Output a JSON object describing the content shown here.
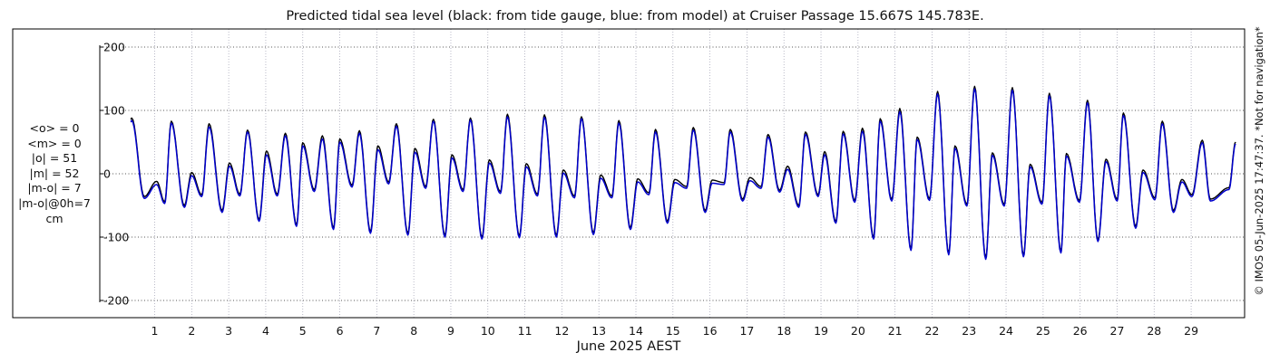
{
  "chart_data": {
    "type": "line",
    "title": "Predicted tidal sea level (black: from tide gauge, blue: from model) at Cruiser Passage 15.667S 145.783E.",
    "xlabel": "June 2025 AEST",
    "ylabel": "",
    "x_range": [
      0.35,
      30.2
    ],
    "ylim": [
      -225,
      225
    ],
    "y_ticks": [
      200,
      100,
      0,
      -100,
      -200
    ],
    "y_tick_labels": [
      "200",
      "100",
      "0",
      "-100",
      "-200"
    ],
    "x_ticks": [
      1,
      2,
      3,
      4,
      5,
      6,
      7,
      8,
      9,
      10,
      11,
      12,
      13,
      14,
      15,
      16,
      17,
      18,
      19,
      20,
      21,
      22,
      23,
      24,
      25,
      26,
      27,
      28,
      29
    ],
    "x_tick_labels": [
      "1",
      "2",
      "3",
      "4",
      "5",
      "6",
      "7",
      "8",
      "9",
      "10",
      "11",
      "12",
      "13",
      "14",
      "15",
      "16",
      "17",
      "18",
      "19",
      "20",
      "21",
      "22",
      "23",
      "24",
      "25",
      "26",
      "27",
      "28",
      "29"
    ],
    "grid": true,
    "series": [
      {
        "color": "#000000",
        "note": "tide gauge",
        "highs": [
          [
            0.38,
            88
          ],
          [
            1.05,
            -12
          ],
          [
            1.45,
            83
          ],
          [
            2.0,
            2
          ],
          [
            2.47,
            79
          ],
          [
            3.02,
            17
          ],
          [
            3.51,
            69
          ],
          [
            4.02,
            36
          ],
          [
            4.53,
            64
          ],
          [
            5.0,
            49
          ],
          [
            5.53,
            60
          ],
          [
            6.0,
            55
          ],
          [
            6.53,
            68
          ],
          [
            7.03,
            44
          ],
          [
            7.53,
            79
          ],
          [
            8.03,
            40
          ],
          [
            8.53,
            86
          ],
          [
            9.03,
            30
          ],
          [
            9.53,
            88
          ],
          [
            10.04,
            22
          ],
          [
            10.53,
            94
          ],
          [
            11.04,
            16
          ],
          [
            11.53,
            93
          ],
          [
            12.04,
            6
          ],
          [
            12.53,
            90
          ],
          [
            13.05,
            -2
          ],
          [
            13.54,
            84
          ],
          [
            14.05,
            -8
          ],
          [
            14.53,
            70
          ],
          [
            15.05,
            -9
          ],
          [
            15.55,
            73
          ],
          [
            16.06,
            -10
          ],
          [
            16.55,
            70
          ],
          [
            17.08,
            -6
          ],
          [
            17.57,
            62
          ],
          [
            18.1,
            12
          ],
          [
            18.58,
            66
          ],
          [
            19.1,
            35
          ],
          [
            19.6,
            67
          ],
          [
            20.12,
            72
          ],
          [
            20.6,
            87
          ],
          [
            21.13,
            103
          ],
          [
            21.6,
            58
          ],
          [
            22.15,
            130
          ],
          [
            22.62,
            44
          ],
          [
            23.15,
            138
          ],
          [
            23.63,
            33
          ],
          [
            24.17,
            136
          ],
          [
            24.65,
            15
          ],
          [
            25.17,
            127
          ],
          [
            25.63,
            32
          ],
          [
            26.2,
            116
          ],
          [
            26.7,
            23
          ],
          [
            27.17,
            96
          ],
          [
            27.7,
            6
          ],
          [
            28.22,
            83
          ],
          [
            28.75,
            -9
          ],
          [
            29.3,
            53
          ]
        ],
        "lows": [
          [
            0.72,
            -36
          ],
          [
            1.27,
            -44
          ],
          [
            1.8,
            -50
          ],
          [
            2.27,
            -33
          ],
          [
            2.82,
            -58
          ],
          [
            3.3,
            -32
          ],
          [
            3.82,
            -72
          ],
          [
            4.31,
            -32
          ],
          [
            4.83,
            -80
          ],
          [
            5.31,
            -25
          ],
          [
            5.83,
            -85
          ],
          [
            6.33,
            -18
          ],
          [
            6.83,
            -91
          ],
          [
            7.32,
            -13
          ],
          [
            7.84,
            -94
          ],
          [
            8.32,
            -20
          ],
          [
            8.84,
            -97
          ],
          [
            9.33,
            -25
          ],
          [
            9.84,
            -100
          ],
          [
            10.34,
            -28
          ],
          [
            10.85,
            -98
          ],
          [
            11.34,
            -32
          ],
          [
            11.85,
            -97
          ],
          [
            12.34,
            -35
          ],
          [
            12.85,
            -93
          ],
          [
            13.35,
            -35
          ],
          [
            13.85,
            -85
          ],
          [
            14.35,
            -30
          ],
          [
            14.85,
            -75
          ],
          [
            15.37,
            -20
          ],
          [
            15.87,
            -58
          ],
          [
            16.38,
            -14
          ],
          [
            16.88,
            -40
          ],
          [
            17.38,
            -20
          ],
          [
            17.88,
            -26
          ],
          [
            18.4,
            -50
          ],
          [
            18.92,
            -33
          ],
          [
            19.4,
            -75
          ],
          [
            19.91,
            -42
          ],
          [
            20.42,
            -100
          ],
          [
            20.91,
            -40
          ],
          [
            21.43,
            -118
          ],
          [
            21.93,
            -39
          ],
          [
            22.45,
            -125
          ],
          [
            22.94,
            -48
          ],
          [
            23.45,
            -132
          ],
          [
            23.95,
            -48
          ],
          [
            24.47,
            -128
          ],
          [
            24.97,
            -45
          ],
          [
            25.48,
            -122
          ],
          [
            25.98,
            -42
          ],
          [
            26.48,
            -104
          ],
          [
            27.0,
            -40
          ],
          [
            27.5,
            -83
          ],
          [
            28.02,
            -38
          ],
          [
            28.52,
            -58
          ],
          [
            29.02,
            -33
          ],
          [
            29.52,
            -40
          ],
          [
            30.02,
            -22
          ]
        ]
      },
      {
        "color": "#0000cc",
        "note": "model",
        "highs": [
          [
            0.38,
            84
          ],
          [
            1.05,
            -17
          ],
          [
            1.45,
            80
          ],
          [
            2.0,
            -3
          ],
          [
            2.47,
            74
          ],
          [
            3.02,
            12
          ],
          [
            3.51,
            66
          ],
          [
            4.02,
            30
          ],
          [
            4.53,
            60
          ],
          [
            5.0,
            44
          ],
          [
            5.53,
            55
          ],
          [
            6.0,
            50
          ],
          [
            6.53,
            64
          ],
          [
            7.03,
            38
          ],
          [
            7.53,
            75
          ],
          [
            8.03,
            34
          ],
          [
            8.53,
            83
          ],
          [
            9.03,
            25
          ],
          [
            9.53,
            85
          ],
          [
            10.04,
            17
          ],
          [
            10.53,
            90
          ],
          [
            11.04,
            11
          ],
          [
            11.53,
            89
          ],
          [
            12.04,
            1
          ],
          [
            12.53,
            87
          ],
          [
            13.05,
            -7
          ],
          [
            13.54,
            80
          ],
          [
            14.05,
            -13
          ],
          [
            14.53,
            66
          ],
          [
            15.05,
            -14
          ],
          [
            15.55,
            69
          ],
          [
            16.06,
            -15
          ],
          [
            16.55,
            66
          ],
          [
            17.08,
            -11
          ],
          [
            17.57,
            58
          ],
          [
            18.1,
            7
          ],
          [
            18.58,
            62
          ],
          [
            19.1,
            30
          ],
          [
            19.6,
            63
          ],
          [
            20.12,
            67
          ],
          [
            20.6,
            83
          ],
          [
            21.13,
            98
          ],
          [
            21.6,
            54
          ],
          [
            22.15,
            126
          ],
          [
            22.62,
            40
          ],
          [
            23.15,
            134
          ],
          [
            23.63,
            29
          ],
          [
            24.17,
            132
          ],
          [
            24.65,
            11
          ],
          [
            25.17,
            123
          ],
          [
            25.63,
            28
          ],
          [
            26.2,
            112
          ],
          [
            26.7,
            19
          ],
          [
            27.17,
            92
          ],
          [
            27.7,
            2
          ],
          [
            28.22,
            79
          ],
          [
            28.75,
            -13
          ],
          [
            29.3,
            49
          ]
        ],
        "lows": [
          [
            0.72,
            -39
          ],
          [
            1.27,
            -47
          ],
          [
            1.8,
            -53
          ],
          [
            2.27,
            -36
          ],
          [
            2.82,
            -61
          ],
          [
            3.3,
            -35
          ],
          [
            3.82,
            -75
          ],
          [
            4.31,
            -35
          ],
          [
            4.83,
            -83
          ],
          [
            5.31,
            -28
          ],
          [
            5.83,
            -88
          ],
          [
            6.33,
            -21
          ],
          [
            6.83,
            -94
          ],
          [
            7.32,
            -16
          ],
          [
            7.84,
            -97
          ],
          [
            8.32,
            -23
          ],
          [
            8.84,
            -100
          ],
          [
            9.33,
            -28
          ],
          [
            9.84,
            -103
          ],
          [
            10.34,
            -31
          ],
          [
            10.85,
            -101
          ],
          [
            11.34,
            -35
          ],
          [
            11.85,
            -100
          ],
          [
            12.34,
            -38
          ],
          [
            12.85,
            -96
          ],
          [
            13.35,
            -38
          ],
          [
            13.85,
            -88
          ],
          [
            14.35,
            -33
          ],
          [
            14.85,
            -78
          ],
          [
            15.37,
            -23
          ],
          [
            15.87,
            -61
          ],
          [
            16.38,
            -17
          ],
          [
            16.88,
            -43
          ],
          [
            17.38,
            -23
          ],
          [
            17.88,
            -29
          ],
          [
            18.4,
            -53
          ],
          [
            18.92,
            -36
          ],
          [
            19.4,
            -78
          ],
          [
            19.91,
            -45
          ],
          [
            20.42,
            -103
          ],
          [
            20.91,
            -43
          ],
          [
            21.43,
            -121
          ],
          [
            21.93,
            -42
          ],
          [
            22.45,
            -128
          ],
          [
            22.94,
            -51
          ],
          [
            23.45,
            -135
          ],
          [
            23.95,
            -51
          ],
          [
            24.47,
            -131
          ],
          [
            24.97,
            -48
          ],
          [
            25.48,
            -125
          ],
          [
            25.98,
            -45
          ],
          [
            26.48,
            -107
          ],
          [
            27.0,
            -43
          ],
          [
            27.5,
            -86
          ],
          [
            28.02,
            -41
          ],
          [
            28.52,
            -61
          ],
          [
            29.02,
            -36
          ],
          [
            29.52,
            -43
          ],
          [
            30.02,
            -25
          ]
        ]
      }
    ]
  },
  "stats": {
    "lines": [
      "<o> = 0",
      "<m> = 0",
      "|o| = 51",
      "|m| = 52",
      "|m-o| = 7",
      "|m-o|@0h=7",
      "cm"
    ]
  },
  "sidenote": "© IMOS 05-Jun-2025 17:47:37.  *Not for navigation*"
}
